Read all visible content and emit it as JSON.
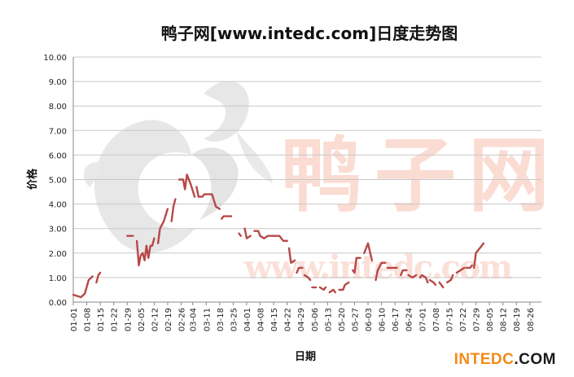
{
  "colors": {
    "line": "#b84848",
    "grid": "#c8c8c8",
    "axis": "#888888",
    "watermark": "#f2a08a",
    "logo_gray": "#cfcfcf",
    "brand_orange": "#f28a17",
    "brand_dark": "#1a1a1a"
  },
  "brand": {
    "part1": "INTEDC",
    "part2": ".COM"
  },
  "watermark": {
    "text_cn": "鸭子网",
    "url": "www.intedc.com"
  },
  "chart_data": {
    "type": "line",
    "title": "鸭子网[www.intedc.com]日度走势图",
    "xlabel": "日期",
    "ylabel": "价格",
    "ylim": [
      0,
      10
    ],
    "yticks": [
      "0.00",
      "1.00",
      "2.00",
      "3.00",
      "4.00",
      "5.00",
      "6.00",
      "7.00",
      "8.00",
      "9.00",
      "10.00"
    ],
    "xticks": [
      "01-01",
      "01-08",
      "01-15",
      "01-22",
      "01-29",
      "02-05",
      "02-12",
      "02-19",
      "02-26",
      "03-04",
      "03-11",
      "03-18",
      "03-25",
      "04-01",
      "04-08",
      "04-15",
      "04-22",
      "04-29",
      "05-06",
      "05-13",
      "05-20",
      "05-27",
      "06-03",
      "06-10",
      "06-17",
      "06-24",
      "07-01",
      "07-08",
      "07-15",
      "07-22",
      "07-29",
      "08-05",
      "08-12",
      "08-19",
      "08-26"
    ],
    "grid": true,
    "legend": "none",
    "series": [
      {
        "segments": [
          [
            [
              "01-01",
              0.3
            ],
            [
              "01-03",
              0.25
            ],
            [
              "01-05",
              0.2
            ],
            [
              "01-07",
              0.35
            ],
            [
              "01-09",
              0.9
            ],
            [
              "01-11",
              1.05
            ]
          ],
          [
            [
              "01-13",
              0.8
            ],
            [
              "01-14",
              1.1
            ],
            [
              "01-15",
              1.2
            ]
          ],
          [
            [
              "01-29",
              2.7
            ],
            [
              "02-01",
              2.7
            ]
          ],
          [
            [
              "02-03",
              2.5
            ],
            [
              "02-04",
              1.5
            ],
            [
              "02-05",
              1.9
            ],
            [
              "02-06",
              2.0
            ],
            [
              "02-07",
              1.7
            ],
            [
              "02-08",
              2.3
            ],
            [
              "02-09",
              1.8
            ],
            [
              "02-10",
              2.3
            ],
            [
              "02-11",
              2.3
            ],
            [
              "02-12",
              2.6
            ]
          ],
          [
            [
              "02-14",
              2.4
            ],
            [
              "02-15",
              3.0
            ],
            [
              "02-17",
              3.3
            ],
            [
              "02-19",
              3.8
            ]
          ],
          [
            [
              "02-21",
              3.3
            ],
            [
              "02-22",
              3.9
            ],
            [
              "02-23",
              4.2
            ]
          ],
          [
            [
              "02-25",
              5.0
            ],
            [
              "02-27",
              5.0
            ],
            [
              "02-28",
              4.6
            ],
            [
              "03-01",
              5.2
            ],
            [
              "03-03",
              4.8
            ],
            [
              "03-05",
              4.3
            ]
          ],
          [
            [
              "03-06",
              4.7
            ],
            [
              "03-07",
              4.3
            ],
            [
              "03-09",
              4.3
            ],
            [
              "03-10",
              4.4
            ],
            [
              "03-14",
              4.4
            ],
            [
              "03-16",
              3.9
            ],
            [
              "03-18",
              3.8
            ]
          ],
          [
            [
              "03-19",
              3.4
            ],
            [
              "03-20",
              3.5
            ],
            [
              "03-24",
              3.5
            ]
          ],
          [
            [
              "03-28",
              2.8
            ],
            [
              "03-29",
              2.7
            ]
          ],
          [
            [
              "03-31",
              3.0
            ],
            [
              "04-01",
              2.6
            ],
            [
              "04-03",
              2.7
            ]
          ],
          [
            [
              "04-05",
              2.9
            ],
            [
              "04-07",
              2.9
            ],
            [
              "04-08",
              2.7
            ],
            [
              "04-10",
              2.6
            ],
            [
              "04-12",
              2.7
            ],
            [
              "04-18",
              2.7
            ],
            [
              "04-20",
              2.5
            ],
            [
              "04-22",
              2.5
            ]
          ],
          [
            [
              "04-23",
              2.2
            ],
            [
              "04-24",
              1.6
            ],
            [
              "04-26",
              1.7
            ]
          ],
          [
            [
              "04-27",
              1.2
            ],
            [
              "04-28",
              1.4
            ],
            [
              "04-30",
              1.4
            ]
          ],
          [
            [
              "05-01",
              1.1
            ],
            [
              "05-03",
              1.0
            ],
            [
              "05-04",
              0.9
            ]
          ],
          [
            [
              "05-05",
              0.6
            ],
            [
              "05-07",
              0.6
            ]
          ],
          [
            [
              "05-09",
              0.6
            ],
            [
              "05-11",
              0.5
            ],
            [
              "05-12",
              0.6
            ]
          ],
          [
            [
              "05-14",
              0.4
            ],
            [
              "05-16",
              0.5
            ],
            [
              "05-17",
              0.4
            ]
          ],
          [
            [
              "05-19",
              0.5
            ],
            [
              "05-21",
              0.5
            ],
            [
              "05-22",
              0.7
            ],
            [
              "05-24",
              0.8
            ]
          ],
          [
            [
              "05-26",
              1.3
            ],
            [
              "05-27",
              1.2
            ],
            [
              "05-28",
              1.8
            ],
            [
              "05-30",
              1.8
            ]
          ],
          [
            [
              "06-01",
              2.0
            ],
            [
              "06-03",
              2.4
            ],
            [
              "06-05",
              1.7
            ]
          ],
          [
            [
              "06-07",
              0.9
            ],
            [
              "06-08",
              1.3
            ],
            [
              "06-10",
              1.6
            ],
            [
              "06-12",
              1.6
            ]
          ],
          [
            [
              "06-13",
              1.4
            ],
            [
              "06-18",
              1.4
            ]
          ],
          [
            [
              "06-20",
              1.1
            ],
            [
              "06-21",
              1.3
            ],
            [
              "06-23",
              1.3
            ]
          ],
          [
            [
              "06-24",
              1.1
            ],
            [
              "06-26",
              1.0
            ],
            [
              "06-28",
              1.1
            ]
          ],
          [
            [
              "06-30",
              1.0
            ],
            [
              "07-01",
              1.1
            ],
            [
              "07-03",
              1.0
            ],
            [
              "07-04",
              0.8
            ]
          ],
          [
            [
              "07-05",
              0.9
            ],
            [
              "07-07",
              0.8
            ],
            [
              "07-08",
              0.7
            ]
          ],
          [
            [
              "07-10",
              0.8
            ],
            [
              "07-12",
              0.6
            ]
          ],
          [
            [
              "07-14",
              0.8
            ],
            [
              "07-16",
              0.9
            ],
            [
              "07-17",
              1.1
            ]
          ],
          [
            [
              "07-19",
              1.2
            ],
            [
              "07-21",
              1.3
            ],
            [
              "07-23",
              1.4
            ]
          ],
          [
            [
              "07-24",
              1.4
            ],
            [
              "07-26",
              1.4
            ],
            [
              "07-27",
              1.5
            ]
          ],
          [
            [
              "07-28",
              1.4
            ],
            [
              "07-29",
              2.0
            ],
            [
              "07-31",
              2.2
            ],
            [
              "08-02",
              2.4
            ]
          ]
        ]
      }
    ]
  }
}
